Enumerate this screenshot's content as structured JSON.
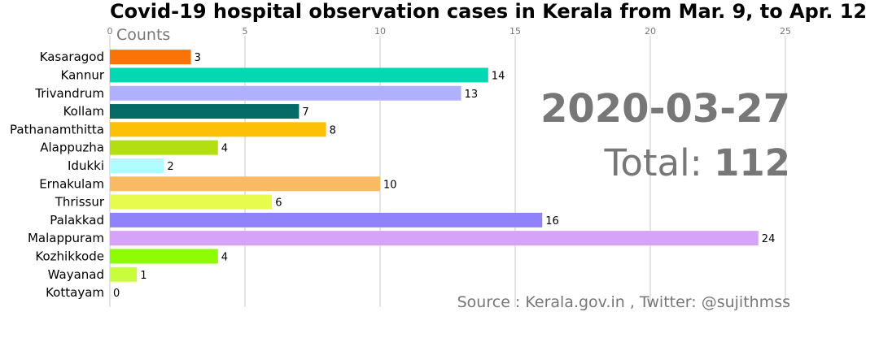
{
  "chart_data": {
    "type": "bar",
    "orientation": "horizontal",
    "title": "Covid-19 hospital observation cases in Kerala from Mar. 9, to Apr. 12",
    "xlabel": "Counts",
    "xlim": [
      0,
      25
    ],
    "xticks": [
      0,
      5,
      10,
      15,
      20,
      25
    ],
    "grid": "vertical",
    "categories": [
      "Kasaragod",
      "Kannur",
      "Trivandrum",
      "Kollam",
      "Pathanamthitta",
      "Alappuzha",
      "Idukki",
      "Ernakulam",
      "Thrissur",
      "Palakkad",
      "Malappuram",
      "Kozhikkode",
      "Wayanad",
      "Kottayam"
    ],
    "values": [
      3,
      14,
      13,
      7,
      8,
      4,
      2,
      10,
      6,
      16,
      24,
      4,
      1,
      0
    ],
    "colors": [
      "#f97306",
      "#04d8b2",
      "#b0b0ff",
      "#066a67",
      "#fcc006",
      "#b3de12",
      "#b0fcff",
      "#f8bb63",
      "#e6fb4d",
      "#8f82fb",
      "#d5a3f8",
      "#8efc05",
      "#c8fd3d",
      "#aaaaaa"
    ],
    "date": "2020-03-27",
    "total_label": "Total:",
    "total_value": "112",
    "source": "Source : Kerala.gov.in , Twitter: @sujithmss"
  }
}
